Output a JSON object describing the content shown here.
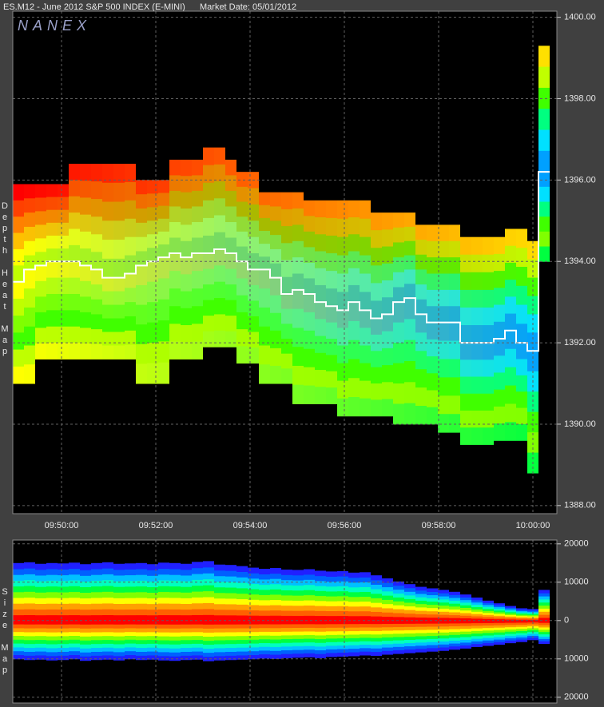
{
  "chart_data": [
    {
      "type": "heatmap",
      "title": "ES.M12 - June 2012 S&P 500 INDEX (E-MINI)",
      "subtitle": "Market Date: 05/01/2012",
      "watermark": "NANEX",
      "ylabel": "Depth Heat Map",
      "ylim": [
        1387.8,
        1400.15
      ],
      "yticks": [
        {
          "value": 1400,
          "label": "1400.00"
        },
        {
          "value": 1398,
          "label": "1398.00"
        },
        {
          "value": 1396,
          "label": "1396.00"
        },
        {
          "value": 1394,
          "label": "1394.00"
        },
        {
          "value": 1392,
          "label": "1392.00"
        },
        {
          "value": 1390,
          "label": "1390.00"
        },
        {
          "value": 1388,
          "label": "1388.00"
        }
      ],
      "xticks": [
        "09:50:00",
        "09:52:00",
        "09:54:00",
        "09:56:00",
        "09:58:00",
        "10:00:00"
      ],
      "grid": true,
      "mid": [
        1393.5,
        1393.8,
        1393.9,
        1394.0,
        1394.0,
        1394.0,
        1393.9,
        1393.8,
        1393.6,
        1393.6,
        1393.7,
        1393.9,
        1394.0,
        1394.1,
        1394.2,
        1394.1,
        1394.2,
        1394.2,
        1394.3,
        1394.2,
        1394.0,
        1393.8,
        1393.8,
        1393.6,
        1393.2,
        1393.3,
        1393.2,
        1393.0,
        1392.9,
        1392.8,
        1393.0,
        1392.8,
        1392.6,
        1392.7,
        1393.0,
        1393.1,
        1392.7,
        1392.5,
        1392.5,
        1392.5,
        1392.0,
        1392.0,
        1392.0,
        1392.1,
        1392.3,
        1392.0,
        1391.8,
        1396.2
      ],
      "depth_high": [
        1395.9,
        1395.9,
        1395.9,
        1395.9,
        1395.9,
        1396.4,
        1396.4,
        1396.4,
        1396.4,
        1396.4,
        1396.4,
        1396.0,
        1396.0,
        1396.0,
        1396.5,
        1396.5,
        1396.5,
        1396.8,
        1396.8,
        1396.5,
        1396.2,
        1396.2,
        1395.7,
        1395.7,
        1395.7,
        1395.7,
        1395.5,
        1395.5,
        1395.5,
        1395.5,
        1395.5,
        1395.5,
        1395.2,
        1395.2,
        1395.2,
        1395.2,
        1394.9,
        1394.9,
        1394.9,
        1394.9,
        1394.6,
        1394.6,
        1394.6,
        1394.6,
        1394.8,
        1394.8,
        1394.5,
        1399.3
      ],
      "depth_low": [
        1391.0,
        1391.0,
        1391.6,
        1391.6,
        1391.6,
        1391.6,
        1391.6,
        1391.6,
        1391.6,
        1391.6,
        1391.6,
        1391.0,
        1391.0,
        1391.0,
        1391.6,
        1391.6,
        1391.6,
        1391.9,
        1391.9,
        1391.9,
        1391.5,
        1391.5,
        1391.0,
        1391.0,
        1391.0,
        1390.5,
        1390.5,
        1390.5,
        1390.5,
        1390.2,
        1390.2,
        1390.2,
        1390.2,
        1390.2,
        1390.0,
        1390.0,
        1390.0,
        1390.0,
        1389.8,
        1389.8,
        1389.5,
        1389.5,
        1389.5,
        1389.6,
        1389.6,
        1389.6,
        1388.8,
        1394.0
      ]
    },
    {
      "type": "area",
      "ylabel": "Size Map",
      "ylim": [
        -21500,
        21000
      ],
      "yticks": [
        20000,
        10000,
        0,
        {
          "value": -10000,
          "label": "10000"
        },
        {
          "value": -20000,
          "label": "20000"
        }
      ],
      "grid": true,
      "ask_size": [
        15000,
        15200,
        14800,
        15000,
        14900,
        15100,
        14700,
        15000,
        15200,
        14800,
        14900,
        15000,
        14700,
        15100,
        15000,
        14800,
        15300,
        15500,
        14600,
        14500,
        14200,
        13800,
        13500,
        13700,
        13300,
        13200,
        13400,
        13000,
        12800,
        12900,
        12500,
        12600,
        11800,
        11000,
        10200,
        9500,
        8800,
        8400,
        8000,
        7500,
        6800,
        6000,
        5200,
        4500,
        3800,
        3200,
        3000,
        8000
      ],
      "bid_size": [
        -10000,
        -10200,
        -10100,
        -10300,
        -10200,
        -10000,
        -10400,
        -10200,
        -10100,
        -10300,
        -10000,
        -10200,
        -10100,
        -10300,
        -10400,
        -10200,
        -10100,
        -10500,
        -10300,
        -10200,
        -10100,
        -10000,
        -9800,
        -9900,
        -9700,
        -9600,
        -9500,
        -9700,
        -9400,
        -9300,
        -9200,
        -9000,
        -9100,
        -8800,
        -8600,
        -8400,
        -8200,
        -8000,
        -7800,
        -7500,
        -7200,
        -6800,
        -6500,
        -6200,
        -5800,
        -5500,
        -5000,
        -6000
      ]
    }
  ]
}
